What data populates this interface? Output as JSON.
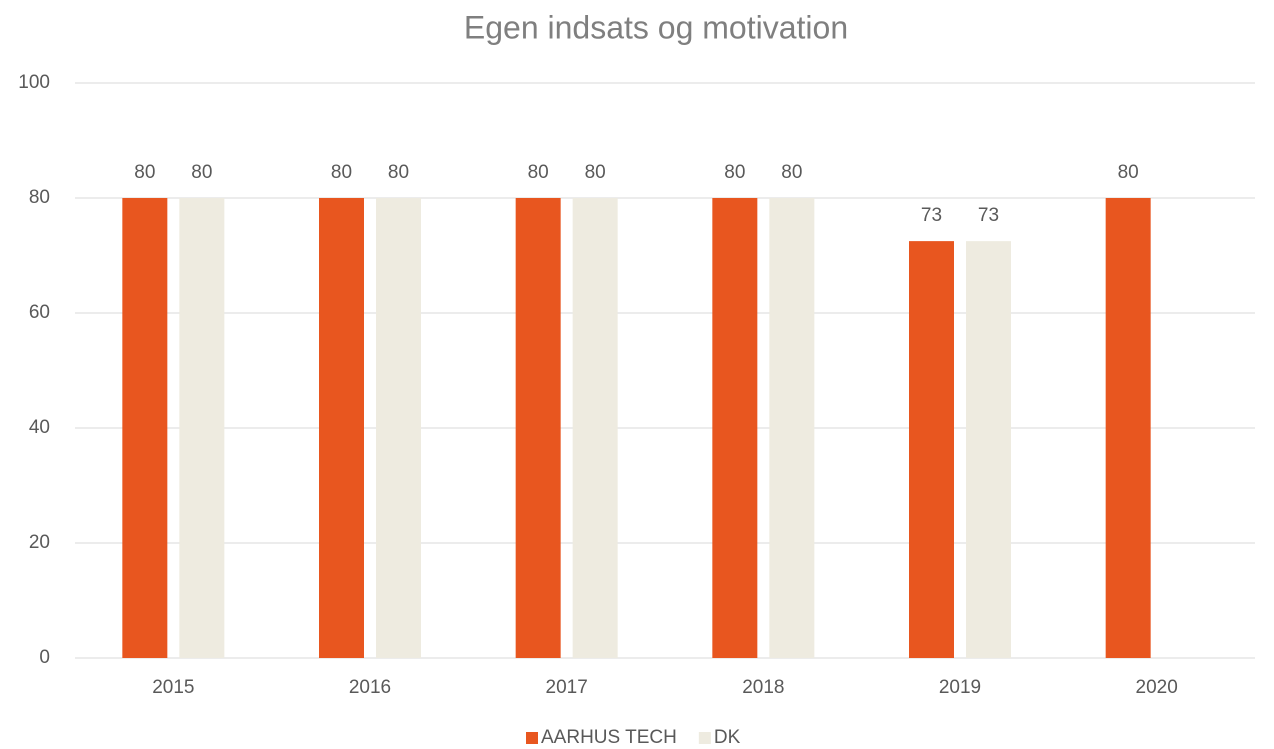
{
  "chart_data": {
    "type": "bar",
    "title": "Egen indsats og motivation",
    "categories": [
      "2015",
      "2016",
      "2017",
      "2018",
      "2019",
      "2020"
    ],
    "series": [
      {
        "name": "AARHUS TECH",
        "color": "#e8561f",
        "values": [
          80,
          80,
          80,
          80,
          72.5,
          80
        ],
        "value_labels": [
          "80",
          "80",
          "80",
          "80",
          "73",
          "80"
        ]
      },
      {
        "name": "DK",
        "color": "#eeebe0",
        "values": [
          80,
          80,
          80,
          80,
          72.5,
          null
        ],
        "value_labels": [
          "80",
          "80",
          "80",
          "80",
          "73",
          null
        ]
      }
    ],
    "ylim": [
      0,
      100
    ],
    "yticks": [
      0,
      20,
      40,
      60,
      80,
      100
    ],
    "grid": true,
    "legend": "bottom"
  }
}
